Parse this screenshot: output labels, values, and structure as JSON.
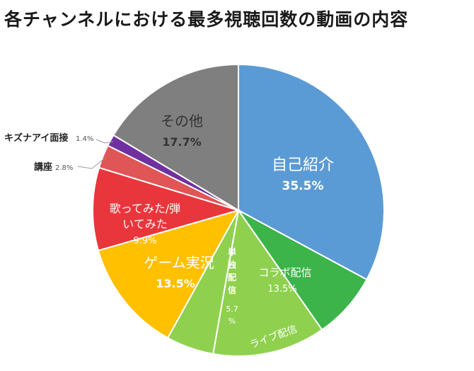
{
  "chart_data": {
    "type": "pie",
    "title": "各チャンネルにおける最多視聴回数の動画の内容",
    "slices": [
      {
        "name": "自己紹介",
        "percent_label": "35.5%",
        "value": 35.5,
        "color": "#5b9bd5"
      },
      {
        "name": "ライブ配信",
        "percent_label": "",
        "value": 8.0,
        "color": "#3cb44a"
      },
      {
        "name": "コラボ配信",
        "percent_label": "13.5%",
        "value": 13.5,
        "color": "#8fd14f"
      },
      {
        "name": "単独配信",
        "percent_label": "5.7%",
        "value": 5.7,
        "color": "#8fd14f"
      },
      {
        "name": "ゲーム実況",
        "percent_label": "13.5%",
        "value": 13.5,
        "color": "#ffc000"
      },
      {
        "name": "歌ってみた/弾いてみた",
        "percent_label": "9.9%",
        "value": 9.9,
        "color": "#e8363c"
      },
      {
        "name": "講座",
        "percent_label": "2.8%",
        "value": 2.8,
        "color": "#e05555"
      },
      {
        "name": "キズナアイ面接",
        "percent_label": "1.4%",
        "value": 1.4,
        "color": "#7030a0"
      },
      {
        "name": "その他",
        "percent_label": "17.7%",
        "value": 17.7,
        "color": "#7f7f7f"
      }
    ]
  }
}
